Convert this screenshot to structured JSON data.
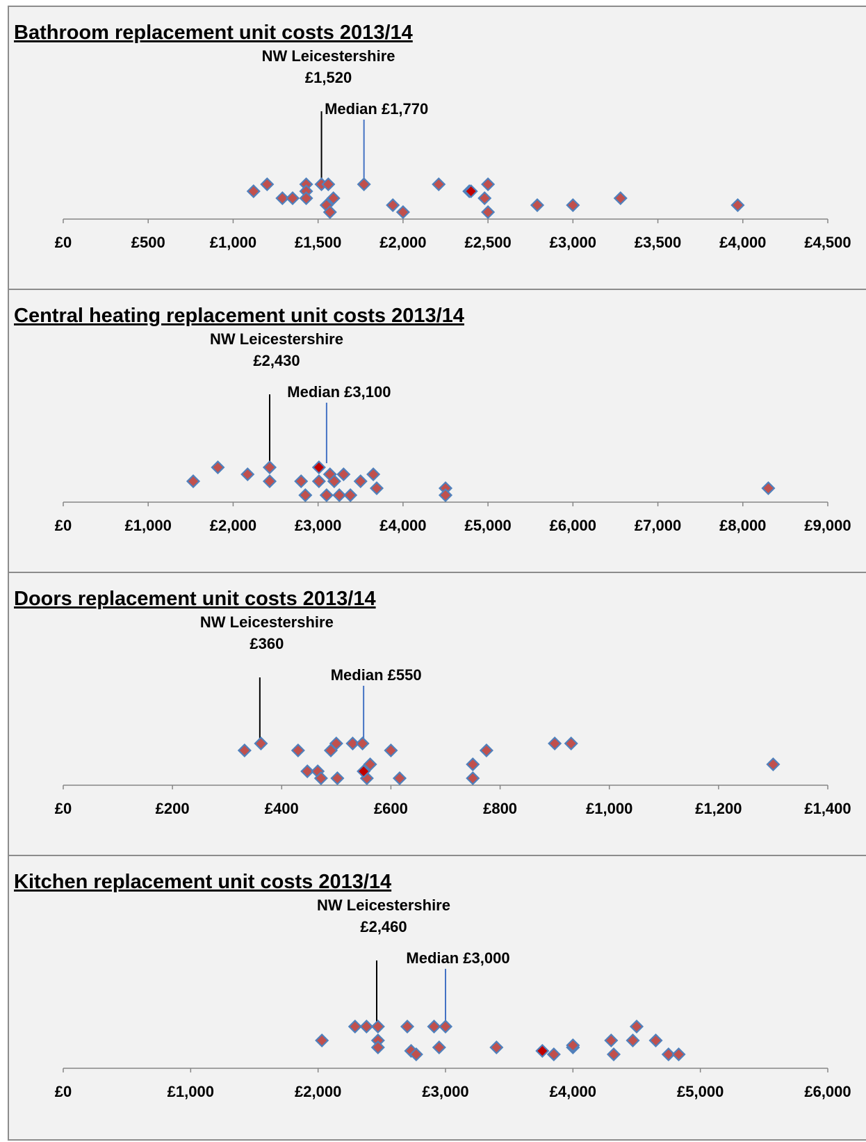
{
  "chart_data": [
    {
      "type": "scatter",
      "title": "Bathroom replacement unit costs 2013/14",
      "xlim": [
        0,
        4500
      ],
      "xticks": [
        0,
        500,
        1000,
        1500,
        2000,
        2500,
        3000,
        3500,
        4000,
        4500
      ],
      "tick_labels": [
        "£0",
        "£500",
        "£1,000",
        "£1,500",
        "£2,000",
        "£2,500",
        "£3,000",
        "£3,500",
        "£4,000",
        "£4,500"
      ],
      "grid": false,
      "series": [
        {
          "points": [
            {
              "x": 1120,
              "y": 2
            },
            {
              "x": 1200,
              "y": 3
            },
            {
              "x": 1290,
              "y": 1
            },
            {
              "x": 1350,
              "y": 1
            },
            {
              "x": 1430,
              "y": 3
            },
            {
              "x": 1430,
              "y": 2
            },
            {
              "x": 1430,
              "y": 1
            },
            {
              "x": 1520,
              "y": 3
            },
            {
              "x": 1550,
              "y": 0
            },
            {
              "x": 1560,
              "y": 3
            },
            {
              "x": 1570,
              "y": -1
            },
            {
              "x": 1590,
              "y": 1
            },
            {
              "x": 1770,
              "y": 3
            },
            {
              "x": 1940,
              "y": 0
            },
            {
              "x": 2000,
              "y": -1
            },
            {
              "x": 2210,
              "y": 3
            },
            {
              "x": 2390,
              "y": 2
            },
            {
              "x": 2480,
              "y": 1
            },
            {
              "x": 2500,
              "y": 3
            },
            {
              "x": 2500,
              "y": -1
            },
            {
              "x": 2790,
              "y": 0
            },
            {
              "x": 3000,
              "y": 0
            },
            {
              "x": 3280,
              "y": 1
            },
            {
              "x": 3970,
              "y": 0
            }
          ]
        }
      ],
      "highlight_point": {
        "x": 2400,
        "y": 2
      },
      "reference_lines": [
        {
          "x": 1520,
          "label_lines": [
            "NW Leicestershire",
            "£1,520"
          ],
          "color": "#000000"
        },
        {
          "x": 1770,
          "label_lines": [
            "Median  £1,770"
          ],
          "color": "#4472c4"
        }
      ],
      "colors": {
        "marker": "#c0504d",
        "marker_edge": "#4f81bd",
        "highlight": "#c00000",
        "axis": "#868686"
      }
    },
    {
      "type": "scatter",
      "title": "Central heating replacement unit costs 2013/14",
      "xlim": [
        0,
        9000
      ],
      "xticks": [
        0,
        1000,
        2000,
        3000,
        4000,
        5000,
        6000,
        7000,
        8000,
        9000
      ],
      "tick_labels": [
        "£0",
        "£1,000",
        "£2,000",
        "£3,000",
        "£4,000",
        "£5,000",
        "£6,000",
        "£7,000",
        "£8,000",
        "£9,000"
      ],
      "grid": false,
      "series": [
        {
          "points": [
            {
              "x": 1530,
              "y": 1
            },
            {
              "x": 1820,
              "y": 3
            },
            {
              "x": 2170,
              "y": 2
            },
            {
              "x": 2430,
              "y": 3
            },
            {
              "x": 2430,
              "y": 1
            },
            {
              "x": 2800,
              "y": 1
            },
            {
              "x": 2850,
              "y": -1
            },
            {
              "x": 3010,
              "y": 1
            },
            {
              "x": 3100,
              "y": -1
            },
            {
              "x": 3140,
              "y": 2
            },
            {
              "x": 3190,
              "y": 1
            },
            {
              "x": 3250,
              "y": -1
            },
            {
              "x": 3300,
              "y": 2
            },
            {
              "x": 3380,
              "y": -1
            },
            {
              "x": 3500,
              "y": 1
            },
            {
              "x": 3650,
              "y": 2
            },
            {
              "x": 3690,
              "y": 0
            },
            {
              "x": 4500,
              "y": 0
            },
            {
              "x": 4500,
              "y": -1
            },
            {
              "x": 8300,
              "y": 0
            }
          ]
        }
      ],
      "highlight_point": {
        "x": 3010,
        "y": 3
      },
      "reference_lines": [
        {
          "x": 2430,
          "label_lines": [
            "NW Leicestershire",
            "£2,430"
          ],
          "color": "#000000"
        },
        {
          "x": 3100,
          "label_lines": [
            "Median  £3,100"
          ],
          "color": "#4472c4"
        }
      ],
      "colors": {
        "marker": "#c0504d",
        "marker_edge": "#4f81bd",
        "highlight": "#c00000",
        "axis": "#868686"
      }
    },
    {
      "type": "scatter",
      "title": "Doors replacement unit costs 2013/14",
      "xlim": [
        0,
        1400
      ],
      "xticks": [
        0,
        200,
        400,
        600,
        800,
        1000,
        1200,
        1400
      ],
      "tick_labels": [
        "£0",
        "£200",
        "£400",
        "£600",
        "£800",
        "£1,000",
        "£1,200",
        "£1,400"
      ],
      "grid": false,
      "series": [
        {
          "points": [
            {
              "x": 332,
              "y": 3
            },
            {
              "x": 362,
              "y": 4
            },
            {
              "x": 430,
              "y": 3
            },
            {
              "x": 447,
              "y": 0
            },
            {
              "x": 466,
              "y": 0
            },
            {
              "x": 472,
              "y": -1
            },
            {
              "x": 490,
              "y": 3
            },
            {
              "x": 500,
              "y": 4
            },
            {
              "x": 502,
              "y": -1
            },
            {
              "x": 530,
              "y": 4
            },
            {
              "x": 548,
              "y": 4
            },
            {
              "x": 556,
              "y": -1
            },
            {
              "x": 562,
              "y": 1
            },
            {
              "x": 600,
              "y": 3
            },
            {
              "x": 616,
              "y": -1
            },
            {
              "x": 750,
              "y": 1
            },
            {
              "x": 750,
              "y": -1
            },
            {
              "x": 775,
              "y": 3
            },
            {
              "x": 900,
              "y": 4
            },
            {
              "x": 930,
              "y": 4
            },
            {
              "x": 1300,
              "y": 1
            }
          ]
        }
      ],
      "highlight_point": {
        "x": 550,
        "y": 0
      },
      "reference_lines": [
        {
          "x": 360,
          "label_lines": [
            "NW Leicestershire",
            "£360"
          ],
          "color": "#000000"
        },
        {
          "x": 550,
          "label_lines": [
            "Median £550"
          ],
          "color": "#4472c4"
        }
      ],
      "colors": {
        "marker": "#c0504d",
        "marker_edge": "#4f81bd",
        "highlight": "#c00000",
        "axis": "#868686"
      }
    },
    {
      "type": "scatter",
      "title": "Kitchen replacement unit costs 2013/14",
      "xlim": [
        0,
        6000
      ],
      "xticks": [
        0,
        1000,
        2000,
        3000,
        4000,
        5000,
        6000
      ],
      "tick_labels": [
        "£0",
        "£1,000",
        "£2,000",
        "£3,000",
        "£4,000",
        "£5,000",
        "£6,000"
      ],
      "grid": false,
      "series": [
        {
          "points": [
            {
              "x": 2030,
              "y": 2
            },
            {
              "x": 2290,
              "y": 4
            },
            {
              "x": 2380,
              "y": 4
            },
            {
              "x": 2470,
              "y": 4
            },
            {
              "x": 2470,
              "y": 2
            },
            {
              "x": 2470,
              "y": 1
            },
            {
              "x": 2700,
              "y": 4
            },
            {
              "x": 2730,
              "y": 0.5
            },
            {
              "x": 2770,
              "y": 0
            },
            {
              "x": 2910,
              "y": 4
            },
            {
              "x": 2950,
              "y": 1
            },
            {
              "x": 3000,
              "y": 4
            },
            {
              "x": 3400,
              "y": 1
            },
            {
              "x": 3850,
              "y": 0
            },
            {
              "x": 4000,
              "y": 1
            },
            {
              "x": 4000,
              "y": 1.3
            },
            {
              "x": 4300,
              "y": 2
            },
            {
              "x": 4320,
              "y": 0
            },
            {
              "x": 4470,
              "y": 2
            },
            {
              "x": 4500,
              "y": 4
            },
            {
              "x": 4650,
              "y": 2
            },
            {
              "x": 4750,
              "y": 0
            },
            {
              "x": 4830,
              "y": 0
            }
          ]
        }
      ],
      "highlight_point": {
        "x": 3760,
        "y": 0.5
      },
      "reference_lines": [
        {
          "x": 2460,
          "label_lines": [
            "NW Leicestershire",
            "£2,460"
          ],
          "color": "#000000"
        },
        {
          "x": 3000,
          "label_lines": [
            "Median  £3,000"
          ],
          "color": "#4472c4"
        }
      ],
      "colors": {
        "marker": "#c0504d",
        "marker_edge": "#4f81bd",
        "highlight": "#c00000",
        "axis": "#868686"
      }
    }
  ]
}
